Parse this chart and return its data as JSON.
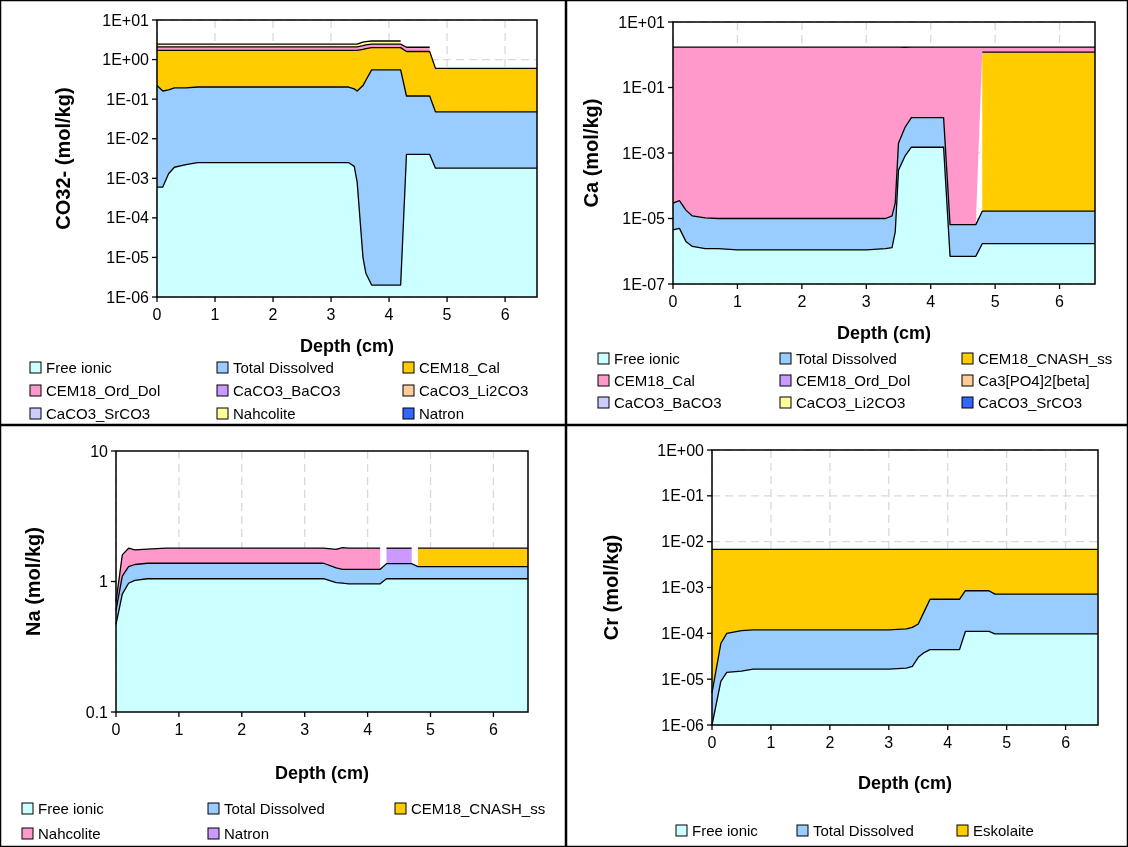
{
  "chart_data": [
    {
      "type": "area",
      "stacked": true,
      "log": true,
      "grid": true,
      "legend": "bottom",
      "xlabel": "Depth (cm)",
      "ylabel": "CO32- (mol/kg)",
      "xlim": [
        0,
        6.55
      ],
      "xticks": [
        0,
        1,
        2,
        3,
        4,
        5,
        6
      ],
      "ylim": [
        1e-06,
        10
      ],
      "yticks": [
        {
          "value": 1e-06,
          "label": "1E-06"
        },
        {
          "value": 1e-05,
          "label": "1E-05"
        },
        {
          "value": 0.0001,
          "label": "1E-04"
        },
        {
          "value": 0.001,
          "label": "1E-03"
        },
        {
          "value": 0.01,
          "label": "1E-02"
        },
        {
          "value": 0.1,
          "label": "1E-01"
        },
        {
          "value": 1,
          "label": "1E+00"
        },
        {
          "value": 10,
          "label": "1E+01"
        }
      ],
      "x": [
        0,
        0.1,
        0.2,
        0.3,
        0.5,
        0.7,
        1,
        2,
        3,
        3.3,
        3.4,
        3.45,
        3.55,
        3.6,
        3.7,
        4.2,
        4.3,
        4.7,
        4.8,
        6.55
      ],
      "series": [
        {
          "name": "Free ionic",
          "color": "#ccffff",
          "values": [
            0.0006,
            0.0006,
            0.0013,
            0.0019,
            0.0022,
            0.0025,
            0.0025,
            0.0025,
            0.0025,
            0.0025,
            0.002,
            0.0008,
            1e-05,
            4e-06,
            2e-06,
            2e-06,
            0.004,
            0.004,
            0.0018,
            0.0018
          ]
        },
        {
          "name": "Total Dissolved",
          "color": "#99ccff",
          "values": [
            0.22,
            0.16,
            0.17,
            0.19,
            0.19,
            0.2,
            0.2,
            0.2,
            0.2,
            0.2,
            0.18,
            0.16,
            0.22,
            0.3,
            0.55,
            0.55,
            0.116,
            0.116,
            0.046,
            0.046
          ]
        },
        {
          "name": "CEM18_Cal",
          "color": "#ffcc00",
          "values": [
            1.48,
            1.54,
            1.53,
            1.51,
            1.51,
            1.5,
            1.5,
            1.5,
            1.5,
            1.5,
            1.52,
            1.54,
            1.58,
            1.6,
            1.45,
            1.45,
            1.48,
            1.48,
            0.55,
            0.55
          ]
        },
        {
          "name": "CEM18_Ord_Dol",
          "color": "#ff99cc",
          "values": [
            0.4,
            0.4,
            0.4,
            0.4,
            0.4,
            0.4,
            0.4,
            0.4,
            0.4,
            0.4,
            0.4,
            0.4,
            0.45,
            0.45,
            0.45,
            0.45,
            0.45,
            0.45,
            null,
            null
          ]
        },
        {
          "name": "CaCO3_BaCO3",
          "color": "#cc99ff",
          "values": [
            null,
            null,
            null,
            null,
            null,
            null,
            null,
            null,
            null,
            null,
            null,
            null,
            null,
            null,
            null,
            null,
            null,
            null,
            null,
            null
          ]
        },
        {
          "name": "CaCO3_Li2CO3",
          "color": "#ffcc99",
          "values": [
            null,
            null,
            null,
            null,
            null,
            null,
            null,
            null,
            null,
            null,
            null,
            null,
            null,
            null,
            null,
            null,
            null,
            null,
            null,
            null
          ]
        },
        {
          "name": "CaCO3_SrCO3",
          "color": "#ccccff",
          "values": [
            null,
            null,
            null,
            null,
            null,
            null,
            null,
            null,
            null,
            null,
            null,
            null,
            null,
            null,
            null,
            null,
            null,
            null,
            null,
            null
          ]
        },
        {
          "name": "Nahcolite",
          "color": "#ffff99",
          "values": [
            0.35,
            0.35,
            0.35,
            0.35,
            0.35,
            0.35,
            0.35,
            0.35,
            0.35,
            0.35,
            0.35,
            0.35,
            0.5,
            0.5,
            0.5,
            0.5,
            null,
            null,
            null,
            null
          ]
        },
        {
          "name": "Natron",
          "color": "#3366ff",
          "values": [
            null,
            null,
            null,
            null,
            null,
            null,
            null,
            null,
            null,
            null,
            null,
            null,
            null,
            null,
            null,
            null,
            null,
            null,
            null,
            null
          ]
        }
      ]
    },
    {
      "type": "area",
      "stacked": true,
      "log": true,
      "grid": true,
      "legend": "bottom",
      "xlabel": "Depth (cm)",
      "ylabel": "Ca (mol/kg)",
      "xlim": [
        0,
        6.55
      ],
      "xticks": [
        0,
        1,
        2,
        3,
        4,
        5,
        6
      ],
      "ylim": [
        1e-07,
        10
      ],
      "yticks": [
        {
          "value": 1e-07,
          "label": "1E-07"
        },
        {
          "value": 1e-05,
          "label": "1E-05"
        },
        {
          "value": 0.001,
          "label": "1E-03"
        },
        {
          "value": 0.1,
          "label": "1E-01"
        },
        {
          "value": 10,
          "label": "1E+01"
        }
      ],
      "x": [
        0,
        0.1,
        0.2,
        0.3,
        0.5,
        0.7,
        1,
        2,
        3,
        3.3,
        3.4,
        3.45,
        3.5,
        3.6,
        3.7,
        4.2,
        4.3,
        4.7,
        4.8,
        6.55
      ],
      "series": [
        {
          "name": "Free ionic",
          "color": "#ccffff",
          "values": [
            4.5e-06,
            5e-06,
            2e-06,
            1.4e-06,
            1.2e-06,
            1.2e-06,
            1.1e-06,
            1.1e-06,
            1.1e-06,
            1.2e-06,
            1.3e-06,
            4e-06,
            0.0003,
            0.0008,
            0.0015,
            0.0015,
            7e-07,
            7e-07,
            1.7e-06,
            1.7e-06
          ]
        },
        {
          "name": "Total Dissolved",
          "color": "#99ccff",
          "values": [
            2.5e-05,
            3e-05,
            1.6e-05,
            1.06e-05,
            9.3e-06,
            8.8e-06,
            8.9e-06,
            8.9e-06,
            8.9e-06,
            8.8e-06,
            1.07e-05,
            2.6e-05,
            0.0017,
            0.0052,
            0.0105,
            0.0105,
            5.8e-06,
            5.8e-06,
            1.5e-05,
            1.5e-05
          ]
        },
        {
          "name": "CEM18_CNASH_ss",
          "color": "#ffcc00",
          "values": [
            null,
            null,
            null,
            null,
            null,
            null,
            null,
            null,
            null,
            null,
            null,
            null,
            null,
            null,
            null,
            null,
            null,
            null,
            1.2,
            1.2
          ]
        },
        {
          "name": "CEM18_Cal",
          "color": "#ff99cc",
          "values": [
            1.7,
            1.7,
            1.7,
            1.7,
            1.7,
            1.7,
            1.7,
            1.7,
            1.7,
            1.7,
            1.7,
            1.7,
            1.7,
            1.69,
            1.69,
            1.69,
            1.7,
            1.7,
            0.5,
            0.5
          ]
        },
        {
          "name": "CEM18_Ord_Dol",
          "color": "#cc99ff",
          "values": [
            null,
            null,
            null,
            null,
            null,
            null,
            null,
            null,
            null,
            null,
            null,
            null,
            null,
            null,
            null,
            null,
            null,
            null,
            null,
            null
          ]
        },
        {
          "name": "Ca3[PO4]2[beta]",
          "color": "#ffcc99",
          "values": [
            null,
            null,
            null,
            null,
            null,
            null,
            null,
            null,
            null,
            null,
            null,
            null,
            null,
            null,
            null,
            null,
            null,
            null,
            null,
            null
          ]
        },
        {
          "name": "CaCO3_BaCO3",
          "color": "#ccccff",
          "values": [
            null,
            null,
            null,
            null,
            null,
            null,
            null,
            null,
            null,
            null,
            null,
            null,
            null,
            null,
            null,
            null,
            null,
            null,
            null,
            null
          ]
        },
        {
          "name": "CaCO3_Li2CO3",
          "color": "#ffff99",
          "values": [
            null,
            null,
            null,
            null,
            null,
            null,
            null,
            null,
            null,
            null,
            null,
            null,
            null,
            null,
            null,
            null,
            null,
            null,
            null,
            null
          ]
        },
        {
          "name": "CaCO3_SrCO3",
          "color": "#3366ff",
          "values": [
            null,
            null,
            null,
            null,
            null,
            null,
            null,
            null,
            null,
            null,
            null,
            null,
            null,
            null,
            null,
            null,
            null,
            null,
            null,
            null
          ]
        }
      ]
    },
    {
      "type": "area",
      "stacked": true,
      "log": true,
      "grid": "x",
      "legend": "bottom",
      "xlabel": "Depth (cm)",
      "ylabel": "Na (mol/kg)",
      "xlim": [
        0,
        6.55
      ],
      "xticks": [
        0,
        1,
        2,
        3,
        4,
        5,
        6
      ],
      "ylim": [
        0.1,
        10
      ],
      "yticks": [
        0.1,
        1,
        10
      ],
      "x": [
        0,
        0.1,
        0.2,
        0.3,
        0.5,
        0.8,
        1,
        2,
        3,
        3.3,
        3.5,
        3.6,
        3.7,
        4.2,
        4.3,
        4.7,
        4.8,
        6.55
      ],
      "series": [
        {
          "name": "Free ionic",
          "color": "#ccffff",
          "values": [
            0.47,
            0.8,
            0.97,
            1.02,
            1.05,
            1.05,
            1.05,
            1.05,
            1.05,
            1.05,
            0.98,
            0.97,
            0.96,
            0.96,
            1.05,
            1.05,
            1.05,
            1.05
          ]
        },
        {
          "name": "Total Dissolved",
          "color": "#99ccff",
          "values": [
            0.13,
            0.3,
            0.33,
            0.33,
            0.33,
            0.33,
            0.33,
            0.33,
            0.33,
            0.33,
            0.29,
            0.27,
            0.28,
            0.28,
            0.32,
            0.32,
            0.25,
            0.25
          ]
        },
        {
          "name": "CEM18_CNASH_ss",
          "color": "#ffcc00",
          "values": [
            null,
            null,
            null,
            null,
            null,
            null,
            null,
            null,
            null,
            null,
            null,
            null,
            null,
            null,
            null,
            null,
            0.5,
            0.5
          ]
        },
        {
          "name": "Nahcolite",
          "color": "#ff99cc",
          "values": [
            0.1,
            0.5,
            0.5,
            0.4,
            0.39,
            0.42,
            0.42,
            0.42,
            0.42,
            0.42,
            0.49,
            0.58,
            0.56,
            0.56,
            null,
            null,
            null,
            null
          ]
        },
        {
          "name": "Natron",
          "color": "#cc99ff",
          "values": [
            null,
            null,
            null,
            null,
            null,
            null,
            null,
            null,
            null,
            null,
            null,
            null,
            null,
            null,
            0.43,
            0.43,
            null,
            null
          ]
        }
      ]
    },
    {
      "type": "area",
      "stacked": true,
      "log": true,
      "grid": true,
      "legend": "bottom",
      "xlabel": "Depth (cm)",
      "ylabel": "Cr (mol/kg)",
      "xlim": [
        0,
        6.55
      ],
      "xticks": [
        0,
        1,
        2,
        3,
        4,
        5,
        6
      ],
      "ylim": [
        1e-06,
        1
      ],
      "yticks": [
        {
          "value": 1e-06,
          "label": "1E-06"
        },
        {
          "value": 1e-05,
          "label": "1E-05"
        },
        {
          "value": 0.0001,
          "label": "1E-04"
        },
        {
          "value": 0.001,
          "label": "1E-03"
        },
        {
          "value": 0.01,
          "label": "1E-02"
        },
        {
          "value": 0.1,
          "label": "1E-01"
        },
        {
          "value": 1,
          "label": "1E+00"
        }
      ],
      "x": [
        0,
        0.15,
        0.25,
        0.5,
        0.7,
        1,
        2,
        3,
        3.3,
        3.4,
        3.5,
        3.6,
        3.7,
        4.2,
        4.3,
        4.7,
        4.8,
        6.55
      ],
      "series": [
        {
          "name": "Free ionic",
          "color": "#ccffff",
          "values": [
            1e-06,
            9e-06,
            1.4e-05,
            1.5e-05,
            1.65e-05,
            1.65e-05,
            1.65e-05,
            1.65e-05,
            1.75e-05,
            1.9e-05,
            3e-05,
            3.8e-05,
            4.4e-05,
            4.4e-05,
            0.00011,
            0.00011,
            9.7e-05,
            9.7e-05
          ]
        },
        {
          "name": "Total Dissolved",
          "color": "#99ccff",
          "values": [
            4e-06,
            5.1e-05,
            8.6e-05,
            0.0001,
            0.000103,
            0.000103,
            0.000103,
            0.000103,
            0.000107,
            0.000116,
            0.00013,
            0.00026,
            0.00051,
            0.00051,
            0.00074,
            0.00074,
            0.00062,
            0.00062
          ]
        },
        {
          "name": "Eskolaite",
          "color": "#ffcc00",
          "values": [
            0.0068,
            0.00674,
            0.0067,
            0.00669,
            0.00668,
            0.00668,
            0.00668,
            0.00668,
            0.00667,
            0.00666,
            0.00664,
            0.0065,
            0.00625,
            0.00625,
            0.00595,
            0.00595,
            0.00608,
            0.00608
          ]
        }
      ]
    }
  ]
}
